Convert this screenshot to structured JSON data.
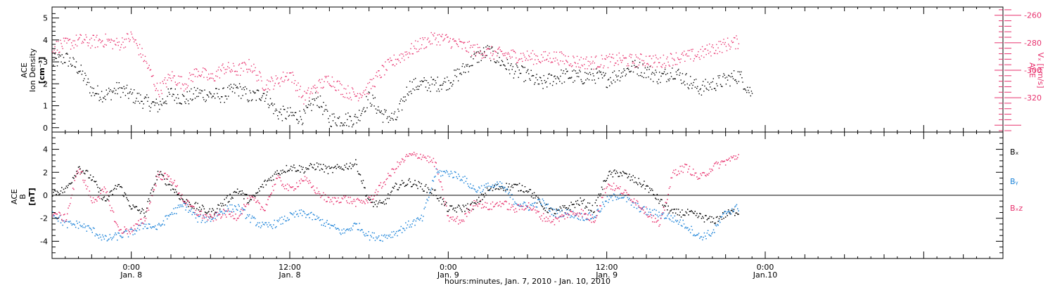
{
  "colors": {
    "black": "#000000",
    "red": "#e8326e",
    "blue": "#1a82d8"
  },
  "xaxis": {
    "label": "hours:minutes, Jan.  7, 2010 - Jan. 10, 2010",
    "range_hours": [
      -6,
      66
    ],
    "ticks": [
      {
        "hour": 0,
        "time": "0:00",
        "date": "Jan. 8"
      },
      {
        "hour": 12,
        "time": "12:00",
        "date": "Jan. 8"
      },
      {
        "hour": 24,
        "time": "0:00",
        "date": "Jan. 9"
      },
      {
        "hour": 36,
        "time": "12:00",
        "date": "Jan. 9"
      },
      {
        "hour": 48,
        "time": "0:00",
        "date": "Jan.10"
      }
    ]
  },
  "chart_data": [
    {
      "type": "scatter",
      "panel": "top",
      "left_axis": {
        "label_lines": [
          "ACE",
          "Ion Density",
          "[cm⁻³]"
        ],
        "ylim": [
          -0.2,
          5.5
        ],
        "ticks": [
          "0",
          "1",
          "2",
          "3",
          "4",
          "5"
        ]
      },
      "right_axis": {
        "label": "Vₓ [km/s]",
        "label_super": "ACE",
        "ylim": [
          -345,
          -254
        ],
        "inverted": true,
        "ticks": [
          "-260",
          "-280",
          "-300",
          "-320"
        ]
      },
      "series": [
        {
          "axis": "left",
          "color_key": "black",
          "points": [
            [
              -6,
              3.0
            ],
            [
              -5,
              3.2
            ],
            [
              -4,
              2.7
            ],
            [
              -3,
              1.7
            ],
            [
              -2,
              1.5
            ],
            [
              -1,
              1.8
            ],
            [
              0,
              1.5
            ],
            [
              1,
              1.2
            ],
            [
              2,
              1.0
            ],
            [
              3,
              1.6
            ],
            [
              4,
              1.3
            ],
            [
              5,
              1.6
            ],
            [
              6,
              1.5
            ],
            [
              7,
              1.5
            ],
            [
              8,
              1.8
            ],
            [
              9,
              1.4
            ],
            [
              10,
              1.6
            ],
            [
              11,
              0.7
            ],
            [
              12,
              0.6
            ],
            [
              13,
              0.5
            ],
            [
              14,
              1.4
            ],
            [
              15,
              0.4
            ],
            [
              16,
              0.4
            ],
            [
              17,
              0.4
            ],
            [
              18,
              1.4
            ],
            [
              19,
              0.6
            ],
            [
              20,
              0.4
            ],
            [
              21,
              1.9
            ],
            [
              22,
              2.0
            ],
            [
              23,
              2.0
            ],
            [
              24,
              2.1
            ],
            [
              25,
              2.6
            ],
            [
              26,
              3.2
            ],
            [
              27,
              3.5
            ],
            [
              28,
              3.0
            ],
            [
              29,
              2.6
            ],
            [
              30,
              2.4
            ],
            [
              31,
              2.0
            ],
            [
              32,
              2.3
            ],
            [
              33,
              2.4
            ],
            [
              34,
              2.3
            ],
            [
              35,
              2.4
            ],
            [
              36,
              2.2
            ],
            [
              37,
              2.5
            ],
            [
              38,
              2.8
            ],
            [
              39,
              2.6
            ],
            [
              40,
              2.3
            ],
            [
              41,
              2.6
            ],
            [
              42,
              2.2
            ],
            [
              43,
              1.8
            ],
            [
              44,
              2.0
            ],
            [
              45,
              2.2
            ],
            [
              46,
              2.4
            ],
            [
              47,
              1.5
            ]
          ]
        },
        {
          "axis": "right",
          "color_key": "red",
          "points": [
            [
              -6,
              -283
            ],
            [
              -5,
              -281
            ],
            [
              -4,
              -278
            ],
            [
              -3,
              -279
            ],
            [
              -2,
              -278
            ],
            [
              -1,
              -281
            ],
            [
              0,
              -275
            ],
            [
              1,
              -292
            ],
            [
              2,
              -315
            ],
            [
              3,
              -304
            ],
            [
              4,
              -310
            ],
            [
              5,
              -300
            ],
            [
              6,
              -306
            ],
            [
              7,
              -298
            ],
            [
              8,
              -300
            ],
            [
              9,
              -296
            ],
            [
              10,
              -310
            ],
            [
              11,
              -308
            ],
            [
              12,
              -302
            ],
            [
              13,
              -320
            ],
            [
              14,
              -312
            ],
            [
              15,
              -306
            ],
            [
              16,
              -314
            ],
            [
              17,
              -318
            ],
            [
              18,
              -312
            ],
            [
              19,
              -300
            ],
            [
              20,
              -292
            ],
            [
              21,
              -286
            ],
            [
              22,
              -280
            ],
            [
              23,
              -276
            ],
            [
              24,
              -278
            ],
            [
              25,
              -282
            ],
            [
              26,
              -285
            ],
            [
              27,
              -287
            ],
            [
              28,
              -288
            ],
            [
              29,
              -289
            ],
            [
              30,
              -290
            ],
            [
              31,
              -291
            ],
            [
              32,
              -290
            ],
            [
              33,
              -292
            ],
            [
              34,
              -294
            ],
            [
              35,
              -294
            ],
            [
              36,
              -293
            ],
            [
              37,
              -292
            ],
            [
              38,
              -293
            ],
            [
              39,
              -292
            ],
            [
              40,
              -294
            ],
            [
              41,
              -291
            ],
            [
              42,
              -290
            ],
            [
              43,
              -288
            ],
            [
              44,
              -284
            ],
            [
              45,
              -281
            ],
            [
              46,
              -279
            ]
          ]
        }
      ]
    },
    {
      "type": "scatter",
      "panel": "bottom",
      "left_axis": {
        "label_lines": [
          "ACE",
          "B",
          "[nT]"
        ],
        "ylim": [
          -5.5,
          5.5
        ],
        "ticks": [
          "4",
          "2",
          "0",
          "-2",
          "-4"
        ]
      },
      "zero_line": true,
      "series": [
        {
          "name": "Bₓ",
          "color_key": "black",
          "points": [
            [
              -6,
              0.3
            ],
            [
              -5,
              0.5
            ],
            [
              -4,
              2.5
            ],
            [
              -3,
              1.5
            ],
            [
              -2,
              -0.5
            ],
            [
              -1,
              1.0
            ],
            [
              0,
              -1.0
            ],
            [
              1,
              -1.5
            ],
            [
              2,
              2.0
            ],
            [
              3,
              0.8
            ],
            [
              4,
              -0.5
            ],
            [
              5,
              -1.0
            ],
            [
              6,
              -1.5
            ],
            [
              7,
              -0.6
            ],
            [
              8,
              0.5
            ],
            [
              9,
              -0.5
            ],
            [
              10,
              1.0
            ],
            [
              11,
              2.0
            ],
            [
              12,
              2.5
            ],
            [
              13,
              2.3
            ],
            [
              14,
              2.6
            ],
            [
              15,
              2.2
            ],
            [
              16,
              2.5
            ],
            [
              17,
              2.8
            ],
            [
              18,
              -0.6
            ],
            [
              19,
              -0.8
            ],
            [
              20,
              0.8
            ],
            [
              21,
              1.2
            ],
            [
              22,
              0.8
            ],
            [
              23,
              0.2
            ],
            [
              24,
              -1.2
            ],
            [
              25,
              -1.1
            ],
            [
              26,
              -0.8
            ],
            [
              27,
              0.5
            ],
            [
              28,
              0.8
            ],
            [
              29,
              0.8
            ],
            [
              30,
              0.6
            ],
            [
              31,
              -0.8
            ],
            [
              32,
              -1.5
            ],
            [
              33,
              -1.0
            ],
            [
              34,
              -0.5
            ],
            [
              35,
              -1.2
            ],
            [
              36,
              1.8
            ],
            [
              37,
              2.0
            ],
            [
              38,
              1.4
            ],
            [
              39,
              0.8
            ],
            [
              40,
              -0.5
            ],
            [
              41,
              -1.5
            ],
            [
              42,
              -1.5
            ],
            [
              43,
              -1.8
            ],
            [
              44,
              -2.2
            ],
            [
              45,
              -1.6
            ],
            [
              46,
              -1.3
            ]
          ]
        },
        {
          "name": "Bᵧ",
          "color_key": "blue",
          "points": [
            [
              -6,
              -1.5
            ],
            [
              -5,
              -2.5
            ],
            [
              -4,
              -2.5
            ],
            [
              -3,
              -3.0
            ],
            [
              -2,
              -3.8
            ],
            [
              -1,
              -3.5
            ],
            [
              0,
              -3.2
            ],
            [
              1,
              -2.5
            ],
            [
              2,
              -2.8
            ],
            [
              3,
              -1.5
            ],
            [
              4,
              -0.8
            ],
            [
              5,
              -2.0
            ],
            [
              6,
              -2.0
            ],
            [
              7,
              -1.2
            ],
            [
              8,
              -1.0
            ],
            [
              9,
              -2.0
            ],
            [
              10,
              -2.7
            ],
            [
              11,
              -2.4
            ],
            [
              12,
              -1.8
            ],
            [
              13,
              -1.5
            ],
            [
              14,
              -2.0
            ],
            [
              15,
              -2.6
            ],
            [
              16,
              -3.2
            ],
            [
              17,
              -2.5
            ],
            [
              18,
              -3.5
            ],
            [
              19,
              -3.6
            ],
            [
              20,
              -3.2
            ],
            [
              21,
              -2.5
            ],
            [
              22,
              -2.0
            ],
            [
              23,
              2.0
            ],
            [
              24,
              2.0
            ],
            [
              25,
              1.6
            ],
            [
              26,
              0.5
            ],
            [
              27,
              0.8
            ],
            [
              28,
              0.9
            ],
            [
              29,
              -0.5
            ],
            [
              30,
              -1.0
            ],
            [
              31,
              -0.5
            ],
            [
              32,
              -1.5
            ],
            [
              33,
              -1.5
            ],
            [
              34,
              -1.8
            ],
            [
              35,
              -1.8
            ],
            [
              36,
              -0.4
            ],
            [
              37,
              0.1
            ],
            [
              38,
              -0.8
            ],
            [
              39,
              -1.4
            ],
            [
              40,
              -1.6
            ],
            [
              41,
              -2.0
            ],
            [
              42,
              -2.6
            ],
            [
              43,
              -3.6
            ],
            [
              44,
              -3.2
            ],
            [
              45,
              -1.4
            ],
            [
              46,
              -1.0
            ]
          ]
        },
        {
          "name": "Bₓz",
          "color_key": "red",
          "points": [
            [
              -6,
              -1.5
            ],
            [
              -5,
              -2.0
            ],
            [
              -4,
              2.5
            ],
            [
              -3,
              -0.5
            ],
            [
              -2,
              0.5
            ],
            [
              -1,
              -3.0
            ],
            [
              0,
              -3.0
            ],
            [
              1,
              -2.0
            ],
            [
              2,
              1.8
            ],
            [
              3,
              1.5
            ],
            [
              4,
              -0.5
            ],
            [
              5,
              -1.5
            ],
            [
              6,
              -2.0
            ],
            [
              7,
              -1.5
            ],
            [
              8,
              -1.8
            ],
            [
              9,
              -0.2
            ],
            [
              10,
              -1.2
            ],
            [
              11,
              1.5
            ],
            [
              12,
              0.5
            ],
            [
              13,
              1.5
            ],
            [
              14,
              0.4
            ],
            [
              15,
              -0.5
            ],
            [
              16,
              -0.2
            ],
            [
              17,
              -0.6
            ],
            [
              18,
              -0.4
            ],
            [
              19,
              1.0
            ],
            [
              20,
              2.5
            ],
            [
              21,
              3.5
            ],
            [
              22,
              3.5
            ],
            [
              23,
              2.8
            ],
            [
              24,
              -2.0
            ],
            [
              25,
              -2.2
            ],
            [
              26,
              -0.5
            ],
            [
              27,
              -1.0
            ],
            [
              28,
              -0.6
            ],
            [
              29,
              -1.2
            ],
            [
              30,
              -0.8
            ],
            [
              31,
              -1.8
            ],
            [
              32,
              -2.2
            ],
            [
              33,
              -1.6
            ],
            [
              34,
              -1.4
            ],
            [
              35,
              -2.2
            ],
            [
              36,
              1.0
            ],
            [
              37,
              0.5
            ],
            [
              38,
              -0.3
            ],
            [
              39,
              -1.4
            ],
            [
              40,
              -2.6
            ],
            [
              41,
              2.0
            ],
            [
              42,
              2.5
            ],
            [
              43,
              1.5
            ],
            [
              44,
              2.5
            ],
            [
              45,
              3.0
            ],
            [
              46,
              3.5
            ]
          ]
        }
      ],
      "legend_placement": "right"
    }
  ]
}
